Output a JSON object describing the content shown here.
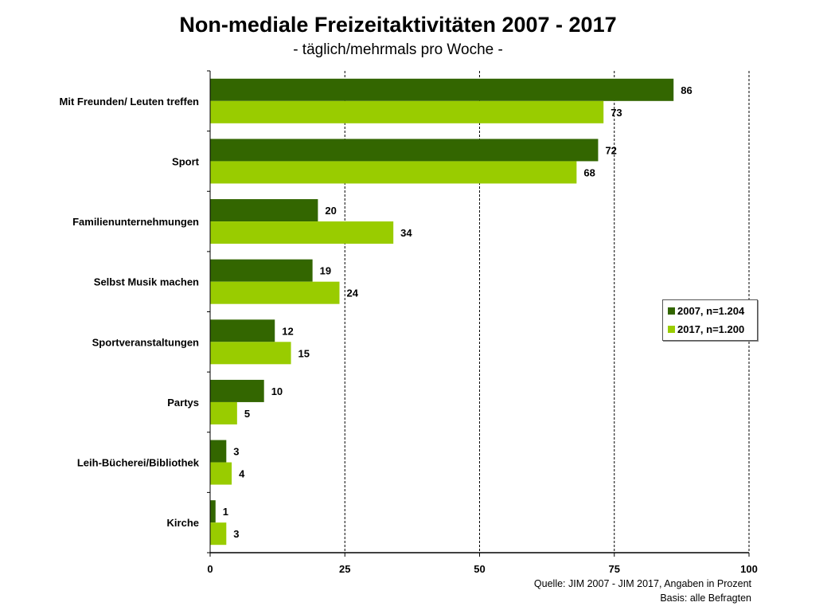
{
  "chart_data": {
    "type": "bar",
    "orientation": "horizontal",
    "title": "Non-mediale Freizeitaktivitäten 2007 - 2017",
    "subtitle": "- täglich/mehrmals pro Woche -",
    "categories": [
      "Mit Freunden/  Leuten  treffen",
      "Sport",
      "Familienunternehmungen",
      "Selbst Musik machen",
      "Sportveranstaltungen",
      "Partys",
      "Leih-Bücherei/Bibliothek",
      "Kirche"
    ],
    "series": [
      {
        "name": "2007, n=1.204",
        "color": "#336600",
        "values": [
          86,
          72,
          20,
          19,
          12,
          10,
          3,
          1
        ]
      },
      {
        "name": "2017, n=1.200",
        "color": "#99cc00",
        "values": [
          73,
          68,
          34,
          24,
          15,
          5,
          4,
          3
        ]
      }
    ],
    "xlim": [
      0,
      100
    ],
    "xticks": [
      0,
      25,
      50,
      75,
      100
    ],
    "xtick_labels": [
      "0",
      "25",
      "50",
      "75",
      "100"
    ],
    "grid": "vertical dashed",
    "legend_position": "right",
    "xlabel": "",
    "ylabel": ""
  },
  "source": {
    "line1": "Quelle: JIM 2007 - JIM 2017, Angaben in Prozent",
    "line2": "Basis: alle Befragten"
  }
}
